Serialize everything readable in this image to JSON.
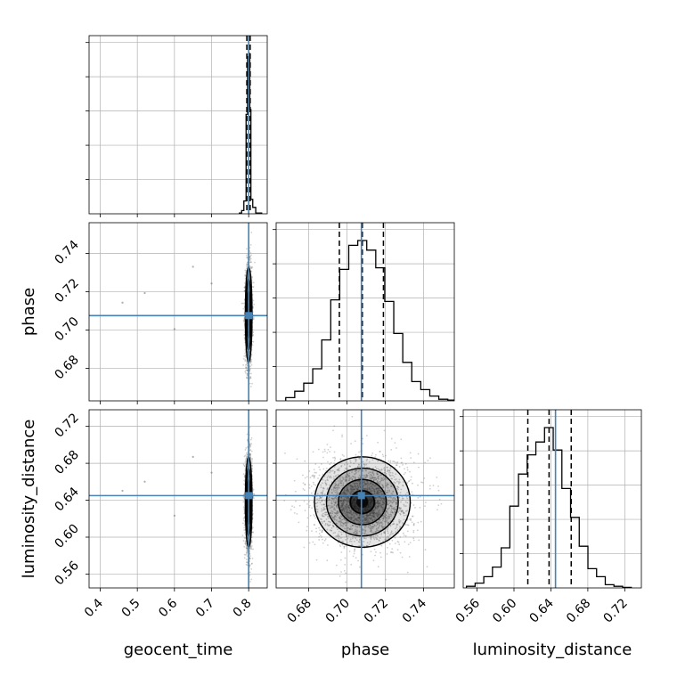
{
  "chart_data": {
    "type": "corner",
    "parameters": [
      "geocent_time",
      "phase",
      "luminosity_distance"
    ],
    "axis_labels": {
      "geocent_time": "geocent_time",
      "phase": "phase",
      "luminosity_distance": "luminosity_distance"
    },
    "ranges": {
      "geocent_time": [
        0.37,
        0.85
      ],
      "phase": [
        0.663,
        0.756
      ],
      "luminosity_distance": [
        0.545,
        0.738
      ]
    },
    "ticks": {
      "geocent_time": {
        "values": [
          0.4,
          0.5,
          0.6,
          0.7,
          0.8
        ],
        "labels": [
          "0.4",
          "0.5",
          "0.6",
          "0.7",
          "0.8"
        ]
      },
      "phase": {
        "values": [
          0.68,
          0.7,
          0.72,
          0.74
        ],
        "labels": [
          "0.68",
          "0.70",
          "0.72",
          "0.74"
        ]
      },
      "luminosity_distance": {
        "values": [
          0.56,
          0.6,
          0.64,
          0.68,
          0.72
        ],
        "labels": [
          "0.56",
          "0.60",
          "0.64",
          "0.68",
          "0.72"
        ]
      }
    },
    "truths": {
      "geocent_time": 0.8,
      "phase": 0.7075,
      "luminosity_distance": 0.645
    },
    "quantiles": {
      "geocent_time": [
        0.795,
        0.8,
        0.804
      ],
      "phase": [
        0.696,
        0.708,
        0.719
      ],
      "luminosity_distance": [
        0.615,
        0.638,
        0.662
      ]
    },
    "histograms": {
      "geocent_time": {
        "bin_edges": [
          0.775,
          0.781,
          0.787,
          0.793,
          0.797,
          0.8,
          0.803,
          0.806,
          0.811,
          0.819,
          0.835
        ],
        "counts": [
          0.005,
          0.02,
          0.08,
          0.62,
          0.98,
          1.0,
          0.65,
          0.09,
          0.04,
          0.005
        ]
      },
      "phase": {
        "bin_edges": [
          0.668,
          0.6727,
          0.6774,
          0.6821,
          0.6868,
          0.6915,
          0.6962,
          0.7009,
          0.7056,
          0.7103,
          0.715,
          0.7197,
          0.7244,
          0.7291,
          0.7338,
          0.7385,
          0.7432,
          0.7479,
          0.7526,
          0.7573
        ],
        "counts": [
          0.02,
          0.06,
          0.11,
          0.2,
          0.38,
          0.63,
          0.82,
          0.97,
          1.0,
          0.94,
          0.83,
          0.62,
          0.42,
          0.24,
          0.12,
          0.07,
          0.03,
          0.01,
          0.005
        ]
      },
      "luminosity_distance": {
        "bin_edges": [
          0.5485,
          0.5579,
          0.5673,
          0.5767,
          0.5861,
          0.5955,
          0.6049,
          0.6143,
          0.6237,
          0.6331,
          0.6425,
          0.6519,
          0.6613,
          0.6707,
          0.6801,
          0.6895,
          0.6989,
          0.7083,
          0.7177,
          0.7271
        ],
        "counts": [
          0.01,
          0.03,
          0.07,
          0.13,
          0.25,
          0.51,
          0.71,
          0.83,
          0.91,
          1.0,
          0.86,
          0.62,
          0.44,
          0.26,
          0.12,
          0.07,
          0.02,
          0.01,
          0.003
        ]
      }
    },
    "samples_2d": {
      "sigma": {
        "geocent_time": 0.0045,
        "phase": 0.0125,
        "luminosity_distance": 0.0245
      },
      "count": 2400
    },
    "colors": {
      "truth": "#4682b4",
      "hist": "#000000",
      "grid": "#b0b0b0",
      "points": "#777777"
    }
  }
}
